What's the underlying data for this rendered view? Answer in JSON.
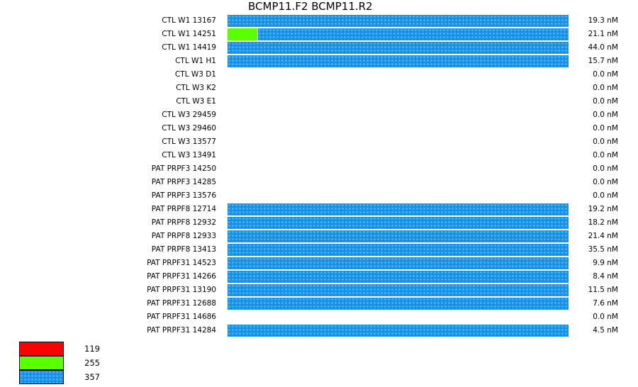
{
  "chart_data": {
    "type": "bar",
    "orientation": "horizontal-stacked",
    "title": "BCMP11.F2  BCMP11.R2",
    "categories": [
      "CTL W1 13167",
      "CTL W1 14251",
      "CTL W1 14419",
      "CTL W1 H1",
      "CTL W3 D1",
      "CTL W3 K2",
      "CTL W3 E1",
      "CTL W3 29459",
      "CTL W3 29460",
      "CTL W3 13577",
      "CTL W3 13491",
      "PAT PRPF3 14250",
      "PAT PRPF3 14285",
      "PAT PRPF3 13576",
      "PAT PRPF8 12714",
      "PAT PRPF8 12932",
      "PAT PRPF8 12933",
      "PAT PRPF8 13413",
      "PAT PRPF31 14523",
      "PAT PRPF31 14266",
      "PAT PRPF31 13190",
      "PAT PRPF31 12688",
      "PAT PRPF31 14686",
      "PAT PRPF31 14284"
    ],
    "values_text": [
      "19.3 nM",
      "21.1 nM",
      "44.0 nM",
      "15.7 nM",
      "0.0 nM",
      "0.0 nM",
      "0.0 nM",
      "0.0 nM",
      "0.0 nM",
      "0.0 nM",
      "0.0 nM",
      "0.0 nM",
      "0.0 nM",
      "0.0 nM",
      "19.2 nM",
      "18.2 nM",
      "21.4 nM",
      "35.5 nM",
      "9.9 nM",
      "8.4 nM",
      "11.5 nM",
      "7.6 nM",
      "0.0 nM",
      "4.5 nM"
    ],
    "series": [
      {
        "name": "119",
        "color": "#ff0000",
        "values": [
          0,
          0,
          0,
          0,
          0,
          0,
          0,
          0,
          0,
          0,
          0,
          0,
          0,
          0,
          0,
          0,
          0,
          0,
          0,
          0,
          0,
          0,
          0,
          0
        ]
      },
      {
        "name": "255",
        "color": "#5aff00",
        "values": [
          0,
          0.09,
          0,
          0,
          0,
          0,
          0,
          0,
          0,
          0,
          0,
          0,
          0,
          0,
          0,
          0,
          0,
          0,
          0,
          0,
          0,
          0,
          0,
          0
        ]
      },
      {
        "name": "357",
        "color": "#1590e4",
        "values": [
          1,
          0.91,
          1,
          1,
          0,
          0,
          0,
          0,
          0,
          0,
          0,
          0,
          0,
          0,
          1,
          1,
          1,
          1,
          1,
          1,
          1,
          1,
          0,
          1
        ]
      }
    ],
    "legend": {
      "position": "bottom-left",
      "entries": [
        "119",
        "255",
        "357"
      ]
    }
  }
}
